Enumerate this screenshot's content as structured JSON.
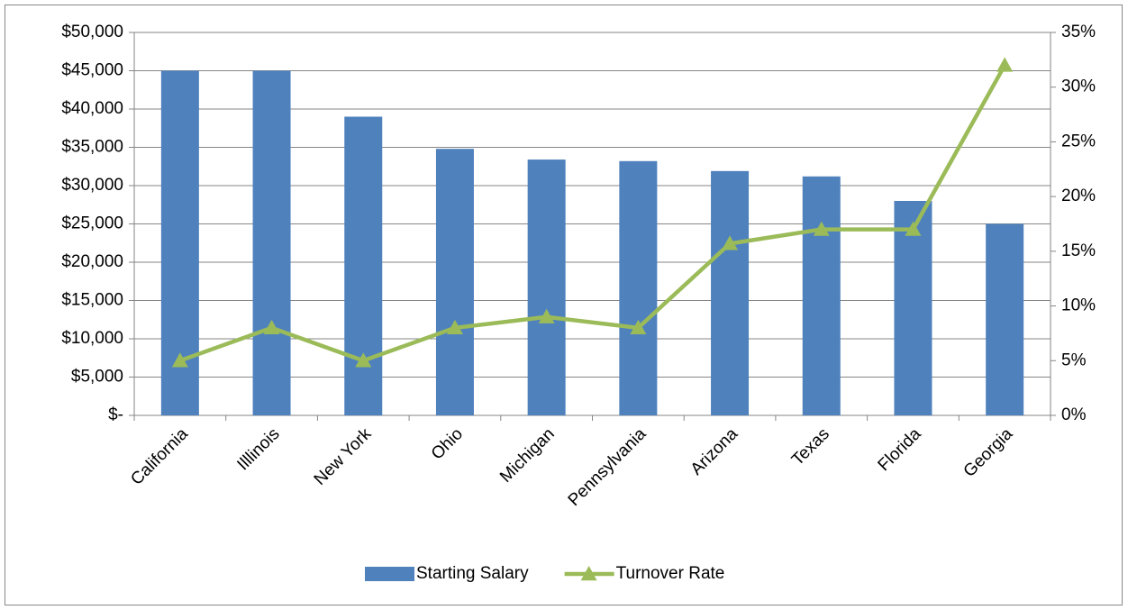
{
  "chart_data": {
    "type": "combo",
    "categories": [
      "California",
      "Illlinois",
      "New York",
      "Ohio",
      "Michigan",
      "Pennsylvania",
      "Arizona",
      "Texas",
      "Florida",
      "Georgia"
    ],
    "series": [
      {
        "name": "Starting Salary",
        "type": "bar",
        "color": "#4f81bd",
        "values": [
          45000,
          45000,
          39000,
          34800,
          33400,
          33200,
          31900,
          31200,
          28000,
          25000
        ]
      },
      {
        "name": "Turnover Rate",
        "type": "line",
        "axis": "y2",
        "color": "#9bbb59",
        "values": [
          5,
          8,
          5,
          8,
          9,
          8,
          15.7,
          17,
          17,
          32
        ]
      }
    ],
    "ylim": [
      0,
      50000
    ],
    "yticks": [
      {
        "value": 0,
        "label": "$-"
      },
      {
        "value": 5000,
        "label": "$5,000"
      },
      {
        "value": 10000,
        "label": "$10,000"
      },
      {
        "value": 15000,
        "label": "$15,000"
      },
      {
        "value": 20000,
        "label": "$20,000"
      },
      {
        "value": 25000,
        "label": "$25,000"
      },
      {
        "value": 30000,
        "label": "$30,000"
      },
      {
        "value": 35000,
        "label": "$35,000"
      },
      {
        "value": 40000,
        "label": "$40,000"
      },
      {
        "value": 45000,
        "label": "$45,000"
      },
      {
        "value": 50000,
        "label": "$50,000"
      }
    ],
    "y2lim": [
      0,
      35
    ],
    "y2ticks": [
      {
        "value": 0,
        "label": "0%"
      },
      {
        "value": 5,
        "label": "5%"
      },
      {
        "value": 10,
        "label": "10%"
      },
      {
        "value": 15,
        "label": "15%"
      },
      {
        "value": 20,
        "label": "20%"
      },
      {
        "value": 25,
        "label": "25%"
      },
      {
        "value": 30,
        "label": "30%"
      },
      {
        "value": 35,
        "label": "35%"
      }
    ],
    "grid": true,
    "legend": "bottom"
  }
}
